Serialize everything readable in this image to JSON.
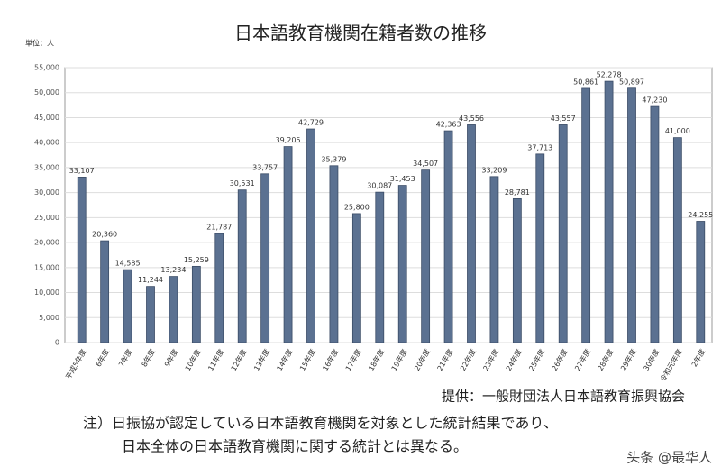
{
  "chart_data": {
    "type": "bar",
    "title": "日本語教育機関在籍者数の推移",
    "y_unit": "単位：人",
    "categories": [
      "平成5年度",
      "6年度",
      "7年度",
      "8年度",
      "9年度",
      "10年度",
      "11年度",
      "12年度",
      "13年度",
      "14年度",
      "15年度",
      "16年度",
      "17年度",
      "18年度",
      "19年度",
      "20年度",
      "21年度",
      "22年度",
      "23年度",
      "24年度",
      "25年度",
      "26年度",
      "27年度",
      "28年度",
      "29年度",
      "30年度",
      "令和元年度",
      "2年度"
    ],
    "values": [
      33107,
      20360,
      14585,
      11244,
      13234,
      15259,
      21787,
      30531,
      33757,
      39205,
      42729,
      35379,
      25800,
      30087,
      31453,
      34507,
      42363,
      43556,
      33209,
      28781,
      37713,
      43557,
      50861,
      52278,
      50897,
      47230,
      41000,
      24255
    ],
    "value_labels": [
      "33,107",
      "20,360",
      "14,585",
      "11,244",
      "13,234",
      "15,259",
      "21,787",
      "30,531",
      "33,757",
      "39,205",
      "42,729",
      "35,379",
      "25,800",
      "30,087",
      "31,453",
      "34,507",
      "42,363",
      "43,556",
      "33,209",
      "28,781",
      "37,713",
      "43,557",
      "50,861",
      "52,278",
      "50,897",
      "47,230",
      "41,000",
      "24,255"
    ],
    "color": "#5b7191",
    "ylim": [
      0,
      55000
    ],
    "yticks": [
      0,
      {
        "value": 5000,
        "label": "5,000"
      },
      {
        "value": 10000,
        "label": "10,000"
      },
      {
        "value": 15000,
        "label": "15,000"
      },
      {
        "value": 20000,
        "label": "20,000"
      },
      {
        "value": 25000,
        "label": "25,000"
      },
      {
        "value": 30000,
        "label": "30,000"
      },
      {
        "value": 35000,
        "label": "35,000"
      },
      {
        "value": 40000,
        "label": "40,000"
      },
      {
        "value": 45000,
        "label": "45,000"
      },
      {
        "value": 50000,
        "label": "50,000"
      },
      {
        "value": 55000,
        "label": "55,000"
      }
    ],
    "grid": true,
    "source": "提供：一般財団法人日本語教育振興協会",
    "notes": [
      "注）日振協が認定している日本語教育機関を対象とした統計結果であり、",
      "日本全体の日本語教育機関に関する統計とは異なる。"
    ],
    "watermark": "头条 @最华人"
  }
}
